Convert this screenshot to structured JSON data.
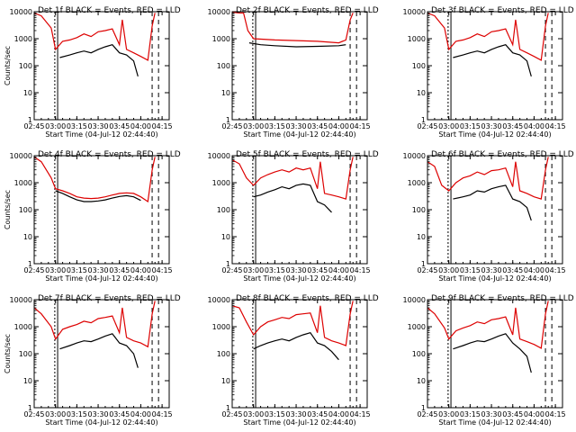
{
  "figure": {
    "colors": {
      "background": "#ffffff",
      "events": "#000000",
      "lld": "#dd0000",
      "axes": "#000000"
    }
  },
  "chart_data": [
    {
      "type": "line",
      "title": "Det 1f BLACK = Events, RED = LLD",
      "xlabel": "Start Time (04-Jul-12 02:44:40)",
      "ylabel": "Counts/sec",
      "x_tick_labels": [
        "02:45",
        "03:00",
        "03:15",
        "03:30",
        "03:45",
        "04:00",
        "04:15"
      ],
      "y_tick_labels": [
        "1",
        "10",
        "100",
        "1000",
        "10000"
      ],
      "ylim": [
        1,
        10000
      ],
      "y_scale": "log",
      "series": [
        {
          "color": "#dd0000",
          "x": [
            "02:45",
            "02:50",
            "02:57",
            "03:00",
            "03:05",
            "03:10",
            "03:15",
            "03:20",
            "03:25",
            "03:30",
            "03:35",
            "03:40",
            "03:45",
            "03:47",
            "03:50",
            "03:55",
            "04:00",
            "04:05",
            "04:08",
            "04:10"
          ],
          "y": [
            9000,
            7000,
            2500,
            400,
            800,
            900,
            1100,
            1500,
            1200,
            1800,
            2000,
            2300,
            600,
            5000,
            400,
            300,
            220,
            160,
            3000,
            9000
          ]
        },
        {
          "color": "#000000",
          "x": [
            "03:03",
            "03:10",
            "03:15",
            "03:20",
            "03:25",
            "03:30",
            "03:35",
            "03:40",
            "03:45",
            "03:50",
            "03:55",
            "03:58"
          ],
          "y": [
            200,
            250,
            300,
            350,
            300,
            400,
            500,
            600,
            300,
            250,
            150,
            40
          ]
        }
      ]
    },
    {
      "type": "line",
      "title": "Det 2f BLACK = Events, RED = LLD",
      "xlabel": "Start Time (04-Jul-12 02:44:40)",
      "ylabel": "",
      "x_tick_labels": [
        "02:45",
        "03:00",
        "03:15",
        "03:30",
        "03:45",
        "04:00",
        "04:15"
      ],
      "y_tick_labels": [
        "1",
        "10",
        "100",
        "1000",
        "10000"
      ],
      "ylim": [
        1,
        10000
      ],
      "y_scale": "log",
      "series": [
        {
          "color": "#dd0000",
          "x": [
            "02:45",
            "02:50",
            "02:53",
            "02:56",
            "03:00",
            "03:15",
            "03:30",
            "03:45",
            "04:00",
            "04:05",
            "04:08",
            "04:10"
          ],
          "y": [
            9500,
            9000,
            9000,
            2000,
            1000,
            900,
            850,
            800,
            700,
            900,
            5000,
            9000
          ]
        },
        {
          "color": "#000000",
          "x": [
            "02:57",
            "03:05",
            "03:15",
            "03:30",
            "03:45",
            "04:00",
            "04:05"
          ],
          "y": [
            700,
            600,
            550,
            500,
            520,
            550,
            600
          ]
        }
      ]
    },
    {
      "type": "line",
      "title": "Det 3f BLACK = Events, RED = LLD",
      "xlabel": "Start Time (04-Jul-12 02:44:40)",
      "ylabel": "",
      "x_tick_labels": [
        "02:45",
        "03:00",
        "03:15",
        "03:30",
        "03:45",
        "04:00",
        "04:15"
      ],
      "y_tick_labels": [
        "1",
        "10",
        "100",
        "1000",
        "10000"
      ],
      "ylim": [
        1,
        10000
      ],
      "y_scale": "log",
      "series": [
        {
          "color": "#dd0000",
          "x": [
            "02:45",
            "02:50",
            "02:57",
            "03:00",
            "03:05",
            "03:10",
            "03:15",
            "03:20",
            "03:25",
            "03:30",
            "03:35",
            "03:40",
            "03:45",
            "03:47",
            "03:50",
            "03:55",
            "04:00",
            "04:05",
            "04:08",
            "04:10"
          ],
          "y": [
            9000,
            7000,
            2500,
            400,
            800,
            900,
            1100,
            1500,
            1200,
            1800,
            2000,
            2300,
            600,
            5000,
            400,
            300,
            220,
            160,
            3000,
            9000
          ]
        },
        {
          "color": "#000000",
          "x": [
            "03:03",
            "03:10",
            "03:15",
            "03:20",
            "03:25",
            "03:30",
            "03:35",
            "03:40",
            "03:45",
            "03:50",
            "03:55",
            "03:58"
          ],
          "y": [
            200,
            250,
            300,
            350,
            300,
            400,
            500,
            600,
            300,
            250,
            150,
            40
          ]
        }
      ]
    },
    {
      "type": "line",
      "title": "Det 4f BLACK = Events, RED = LLD",
      "xlabel": "Start Time (04-Jul-12 02:44:40)",
      "ylabel": "Counts/sec",
      "x_tick_labels": [
        "02:45",
        "03:00",
        "03:15",
        "03:30",
        "03:45",
        "04:00",
        "04:15"
      ],
      "y_tick_labels": [
        "1",
        "10",
        "100",
        "1000",
        "10000"
      ],
      "ylim": [
        1,
        10000
      ],
      "y_scale": "log",
      "series": [
        {
          "color": "#dd0000",
          "x": [
            "02:45",
            "02:50",
            "02:57",
            "03:00",
            "03:05",
            "03:10",
            "03:15",
            "03:20",
            "03:25",
            "03:30",
            "03:35",
            "03:40",
            "03:45",
            "03:50",
            "03:55",
            "04:00",
            "04:05",
            "04:08",
            "04:10"
          ],
          "y": [
            9000,
            6000,
            1500,
            600,
            500,
            400,
            300,
            270,
            260,
            270,
            300,
            350,
            400,
            420,
            400,
            300,
            200,
            3000,
            9000
          ]
        },
        {
          "color": "#000000",
          "x": [
            "03:00",
            "03:05",
            "03:10",
            "03:15",
            "03:20",
            "03:25",
            "03:30",
            "03:35",
            "03:40",
            "03:45",
            "03:50",
            "03:55",
            "04:00"
          ],
          "y": [
            500,
            400,
            300,
            230,
            200,
            200,
            210,
            230,
            270,
            310,
            330,
            300,
            220
          ]
        }
      ]
    },
    {
      "type": "line",
      "title": "Det 5f BLACK = Events, RED = LLD",
      "xlabel": "Start Time (04-Jul-12 02:44:40)",
      "ylabel": "",
      "x_tick_labels": [
        "02:45",
        "03:00",
        "03:15",
        "03:30",
        "03:45",
        "04:00",
        "04:15"
      ],
      "y_tick_labels": [
        "1",
        "10",
        "100",
        "1000",
        "10000"
      ],
      "ylim": [
        1,
        10000
      ],
      "y_scale": "log",
      "series": [
        {
          "color": "#dd0000",
          "x": [
            "02:45",
            "02:50",
            "02:55",
            "03:00",
            "03:05",
            "03:10",
            "03:15",
            "03:20",
            "03:25",
            "03:30",
            "03:35",
            "03:40",
            "03:45",
            "03:47",
            "03:50",
            "03:55",
            "04:00",
            "04:05",
            "04:08",
            "04:10"
          ],
          "y": [
            7000,
            5000,
            1500,
            800,
            1500,
            2000,
            2500,
            3000,
            2500,
            3500,
            3000,
            3500,
            600,
            6000,
            400,
            350,
            300,
            250,
            3000,
            9000
          ]
        },
        {
          "color": "#000000",
          "x": [
            "03:00",
            "03:05",
            "03:10",
            "03:15",
            "03:20",
            "03:25",
            "03:30",
            "03:35",
            "03:40",
            "03:45",
            "03:50",
            "03:55"
          ],
          "y": [
            300,
            350,
            450,
            550,
            700,
            600,
            800,
            900,
            800,
            200,
            150,
            80
          ]
        }
      ]
    },
    {
      "type": "line",
      "title": "Det 6f BLACK = Events, RED = LLD",
      "xlabel": "Start Time (04-Jul-12 02:44:40)",
      "ylabel": "",
      "x_tick_labels": [
        "02:45",
        "03:00",
        "03:15",
        "03:30",
        "03:45",
        "04:00",
        "04:15"
      ],
      "y_tick_labels": [
        "1",
        "10",
        "100",
        "1000",
        "10000"
      ],
      "ylim": [
        1,
        10000
      ],
      "y_scale": "log",
      "series": [
        {
          "color": "#dd0000",
          "x": [
            "02:45",
            "02:50",
            "02:55",
            "03:00",
            "03:05",
            "03:10",
            "03:15",
            "03:20",
            "03:25",
            "03:30",
            "03:35",
            "03:40",
            "03:45",
            "03:47",
            "03:50",
            "03:55",
            "04:00",
            "04:05",
            "04:08",
            "04:10"
          ],
          "y": [
            6000,
            4000,
            800,
            500,
            1000,
            1500,
            1800,
            2500,
            2000,
            2800,
            3000,
            3500,
            700,
            6000,
            500,
            400,
            300,
            250,
            3000,
            9000
          ]
        },
        {
          "color": "#000000",
          "x": [
            "03:03",
            "03:10",
            "03:15",
            "03:20",
            "03:25",
            "03:30",
            "03:35",
            "03:40",
            "03:45",
            "03:50",
            "03:55",
            "03:58"
          ],
          "y": [
            250,
            300,
            350,
            500,
            450,
            600,
            700,
            800,
            250,
            200,
            120,
            40
          ]
        }
      ]
    },
    {
      "type": "line",
      "title": "Det 7f BLACK = Events, RED = LLD",
      "xlabel": "Start Time (04-Jul-12 02:44:40)",
      "ylabel": "Counts/sec",
      "x_tick_labels": [
        "02:45",
        "03:00",
        "03:15",
        "03:30",
        "03:45",
        "04:00",
        "04:15"
      ],
      "y_tick_labels": [
        "1",
        "10",
        "100",
        "1000",
        "10000"
      ],
      "ylim": [
        1,
        10000
      ],
      "y_scale": "log",
      "series": [
        {
          "color": "#dd0000",
          "x": [
            "02:45",
            "02:50",
            "02:57",
            "03:00",
            "03:05",
            "03:10",
            "03:15",
            "03:20",
            "03:25",
            "03:30",
            "03:35",
            "03:40",
            "03:45",
            "03:47",
            "03:50",
            "03:55",
            "04:00",
            "04:05",
            "04:08",
            "04:10"
          ],
          "y": [
            5000,
            3000,
            1000,
            350,
            800,
            1000,
            1200,
            1600,
            1400,
            2000,
            2200,
            2500,
            600,
            5000,
            400,
            300,
            250,
            180,
            3000,
            9000
          ]
        },
        {
          "color": "#000000",
          "x": [
            "03:03",
            "03:10",
            "03:15",
            "03:20",
            "03:25",
            "03:30",
            "03:35",
            "03:40",
            "03:45",
            "03:50",
            "03:55",
            "03:58"
          ],
          "y": [
            150,
            200,
            250,
            300,
            280,
            350,
            450,
            550,
            250,
            200,
            100,
            30
          ]
        }
      ]
    },
    {
      "type": "line",
      "title": "Det 8f BLACK = Events, RED = LLD",
      "xlabel": "Start Time (04-Jul-12 02:44:40)",
      "ylabel": "",
      "x_tick_labels": [
        "02:45",
        "03:00",
        "03:15",
        "03:30",
        "03:45",
        "04:00",
        "04:15"
      ],
      "y_tick_labels": [
        "1",
        "10",
        "100",
        "1000",
        "10000"
      ],
      "ylim": [
        1,
        10000
      ],
      "y_scale": "log",
      "series": [
        {
          "color": "#dd0000",
          "x": [
            "02:45",
            "02:50",
            "02:55",
            "03:00",
            "03:05",
            "03:10",
            "03:15",
            "03:20",
            "03:25",
            "03:30",
            "03:35",
            "03:40",
            "03:45",
            "03:47",
            "03:50",
            "03:55",
            "04:00",
            "04:05",
            "04:08",
            "04:10"
          ],
          "y": [
            6000,
            5000,
            1500,
            500,
            1000,
            1500,
            1800,
            2200,
            2000,
            2800,
            3000,
            3200,
            600,
            6000,
            400,
            300,
            250,
            200,
            3000,
            9000
          ]
        },
        {
          "color": "#000000",
          "x": [
            "03:00",
            "03:05",
            "03:10",
            "03:15",
            "03:20",
            "03:25",
            "03:30",
            "03:35",
            "03:40",
            "03:45",
            "03:50",
            "03:55",
            "04:00"
          ],
          "y": [
            150,
            200,
            250,
            300,
            350,
            300,
            400,
            500,
            600,
            250,
            200,
            120,
            60
          ]
        }
      ]
    },
    {
      "type": "line",
      "title": "Det 9f BLACK = Events, RED = LLD",
      "xlabel": "Start Time (04-Jul-12 02:44:40)",
      "ylabel": "",
      "x_tick_labels": [
        "02:45",
        "03:00",
        "03:15",
        "03:30",
        "03:45",
        "04:00",
        "04:15"
      ],
      "y_tick_labels": [
        "1",
        "10",
        "100",
        "1000",
        "10000"
      ],
      "ylim": [
        1,
        10000
      ],
      "y_scale": "log",
      "series": [
        {
          "color": "#dd0000",
          "x": [
            "02:45",
            "02:50",
            "02:57",
            "03:00",
            "03:05",
            "03:10",
            "03:15",
            "03:20",
            "03:25",
            "03:30",
            "03:35",
            "03:40",
            "03:45",
            "03:47",
            "03:50",
            "03:55",
            "04:00",
            "04:05",
            "04:08",
            "04:10"
          ],
          "y": [
            5000,
            3000,
            900,
            350,
            700,
            900,
            1100,
            1500,
            1300,
            1800,
            2000,
            2300,
            500,
            5000,
            350,
            280,
            220,
            160,
            3000,
            9000
          ]
        },
        {
          "color": "#000000",
          "x": [
            "03:03",
            "03:10",
            "03:15",
            "03:20",
            "03:25",
            "03:30",
            "03:35",
            "03:40",
            "03:45",
            "03:50",
            "03:55",
            "03:58"
          ],
          "y": [
            150,
            200,
            250,
            300,
            280,
            350,
            450,
            550,
            250,
            150,
            80,
            20
          ]
        }
      ]
    }
  ]
}
